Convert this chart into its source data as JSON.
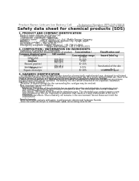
{
  "bg_color": "#ffffff",
  "header_top_left": "Product Name: Lithium Ion Battery Cell",
  "header_top_right_line1": "Substance Number: MPS-049-00818",
  "header_top_right_line2": "Establishment / Revision: Dec.1.2010",
  "title": "Safety data sheet for chemical products (SDS)",
  "section1_header": "1. PRODUCT AND COMPANY IDENTIFICATION",
  "section1_lines": [
    "· Product name: Lithium Ion Battery Cell",
    "· Product code: Cylindrical-type cell",
    "   (14166500, (14168500, (14B650A)",
    "· Company name:      Sanyo Electric Co., Ltd., Mobile Energy Company",
    "· Address:               2001-1  Kamimura, Sumoto City, Hyogo, Japan",
    "· Telephone number:   +81-(798)-20-4111",
    "· Fax number:   +81-1-798-26-4120",
    "· Emergency telephone number (daytime): +81-798-20-3842",
    "                                        (Night and holidays): +81-1-798-26-4121"
  ],
  "section2_header": "2. COMPOSITION / INFORMATION ON INGREDIENTS",
  "section2_intro": "· Substance or preparation: Preparation",
  "section2_sub": "· Information about the chemical nature of product:",
  "table_col_labels": [
    "Common chemical name",
    "CAS number",
    "Concentration /\nConcentration range",
    "Classification and\nhazard labeling"
  ],
  "table_rows": [
    [
      "Lithium cobalt oxide\n(LiMnCoO4)",
      "-",
      "20~60%",
      "-"
    ],
    [
      "Iron",
      "7439-89-6",
      "15~25%",
      "-"
    ],
    [
      "Aluminum",
      "7429-90-5",
      "2~6%",
      "-"
    ],
    [
      "Graphite\n(Natural graphite)\n(Artificial graphite)",
      "7782-42-5\n7782-44-2",
      "10~25%",
      "-"
    ],
    [
      "Copper",
      "7440-50-8",
      "5~15%",
      "Sensitization of the skin\ngroup No.2"
    ],
    [
      "Organic electrolyte",
      "-",
      "10~20%",
      "Inflammable liquid"
    ]
  ],
  "section3_header": "3. HAZARDS IDENTIFICATION",
  "section3_paras": [
    "   For the battery cell, chemical materials are stored in a hermetically sealed metal case, designed to withstand",
    "temperatures between the complete specifications during normal use. As a result, during normal use, there is no",
    "physical danger of ignition or aspiration and thermal danger of hazardous materials leakage.",
    "   However, if exposed to a fire, added mechanical shocks, decomposed, written electric without any misuse,",
    "the gas release vent will be operated. The battery cell case will be breached at fire-explosive, hazardous",
    "materials may be released.",
    "   Moreover, if heated strongly by the surrounding fire, acid gas may be emitted.",
    "",
    "· Most important hazard and effects:",
    "   Human health effects:",
    "      Inhalation: The steam of the electrolyte has an anesthesia action and stimulates in respiratory tract.",
    "      Skin contact: The steam of the electrolyte stimulates a skin. The electrolyte skin contact causes a",
    "      sore and stimulation on the skin.",
    "      Eye contact: The steam of the electrolyte stimulates eyes. The electrolyte eye contact causes a sore",
    "      and stimulation on the eye. Especially, a substance that causes a strong inflammation of the eye is",
    "      contained.",
    "      Environmental effects: Since a battery cell remains in the environment, do not throw out it into the",
    "      environment.",
    "",
    "· Specific hazards:",
    "   If the electrolyte contacts with water, it will generate detrimental hydrogen fluoride.",
    "   Since the used electrolyte is inflammable liquid, do not bring close to fire."
  ],
  "text_color": "#222222",
  "header_color": "#666666",
  "line_color": "#aaaaaa",
  "table_header_bg": "#dddddd",
  "table_alt_bg": "#f2f2f2"
}
